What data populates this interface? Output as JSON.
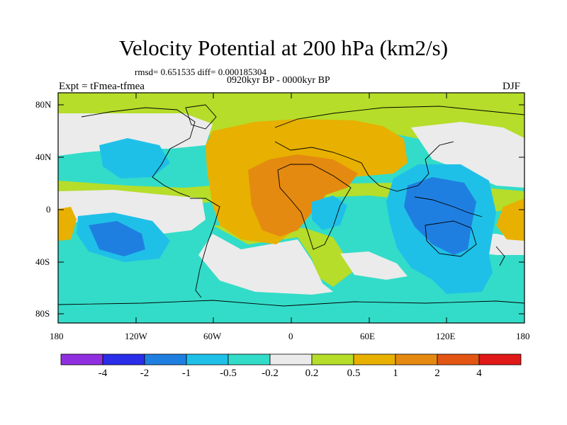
{
  "title": "Velocity Potential at 200 hPa (km2/s)",
  "stats_line": "rmsd= 0.651535 diff= 0.000185304",
  "period": "0920kyr BP - 0000kyr BP",
  "experiment": "Expt = tFmea-tfmea",
  "season": "DJF",
  "lat_labels": [
    "80N",
    "40N",
    "0",
    "40S",
    "80S"
  ],
  "lon_labels": [
    "180",
    "120W",
    "60W",
    "0",
    "60E",
    "120E",
    "180"
  ],
  "colorbar": {
    "colors": [
      "#8f2fe0",
      "#2a2ee8",
      "#1f7fe0",
      "#1fc0e8",
      "#33dcc8",
      "#ebebeb",
      "#b5dd2a",
      "#e8b000",
      "#e58a10",
      "#e25512",
      "#e01818"
    ],
    "labels": [
      "-4",
      "-2",
      "-1",
      "-0.5",
      "-0.2",
      "0.2",
      "0.5",
      "1",
      "2",
      "4"
    ]
  }
}
